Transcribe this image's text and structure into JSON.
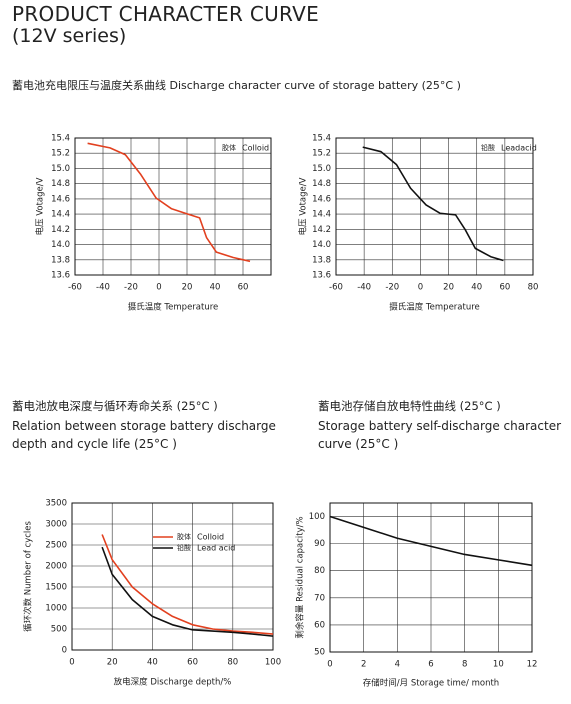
{
  "header": {
    "title": "PRODUCT CHARACTER CURVE",
    "subtitle": "(12V series)"
  },
  "sections": [
    {
      "heading": "蓄电池充电限压与温度关系曲线  Discharge character curve of storage battery (25°C )"
    },
    {
      "heading_cn": "蓄电池放电深度与循环寿命关系 (25°C )",
      "heading_en": "Relation between storage battery discharge depth and cycle life (25°C )"
    },
    {
      "heading_cn": "蓄电池存储自放电特性曲线 (25°C )",
      "heading_en": "Storage battery self-discharge character curve (25°C )"
    }
  ],
  "chart_data": [
    {
      "type": "line",
      "x_label": "摄氏温度 Temperature",
      "y_label": "电压 Votage/V",
      "x": [
        -51,
        -35,
        -24,
        -13,
        -2,
        9,
        19,
        29,
        34,
        41,
        53,
        65
      ],
      "series": [
        {
          "name": "Colloid",
          "name_cn": "胶体",
          "color": "#e2401f",
          "values": [
            15.33,
            15.27,
            15.18,
            14.92,
            14.61,
            14.47,
            14.41,
            14.35,
            14.09,
            13.9,
            13.83,
            13.78
          ]
        }
      ],
      "xlim": [
        -60,
        80
      ],
      "xticks": [
        -60,
        -40,
        -20,
        0,
        20,
        40,
        60
      ],
      "ylim": [
        13.6,
        15.4
      ],
      "yticks": [
        13.6,
        13.8,
        {
          "value": 14,
          "label": "14.0"
        },
        14.2,
        14.4,
        14.6,
        14.8,
        {
          "value": 15,
          "label": "15.0"
        },
        15.2,
        15.4
      ],
      "grid": true,
      "legend": "top-right"
    },
    {
      "type": "line",
      "x_label": "摄氏温度 Temperature",
      "y_label": "电压 Votage/V",
      "x": [
        -41,
        -28,
        -17,
        -7,
        4,
        14,
        25,
        32,
        39,
        50,
        59
      ],
      "series": [
        {
          "name": "Leadacid",
          "name_cn": "铅酸",
          "color": "#111111",
          "values": [
            15.28,
            15.22,
            15.05,
            14.74,
            14.52,
            14.41,
            14.39,
            14.19,
            13.95,
            13.84,
            13.79
          ]
        }
      ],
      "xlim": [
        -60,
        80
      ],
      "xticks": [
        -60,
        -40,
        -20,
        0,
        20,
        40,
        60,
        80
      ],
      "ylim": [
        13.6,
        15.4
      ],
      "yticks": [
        13.6,
        13.8,
        {
          "value": 14,
          "label": "14.0"
        },
        14.2,
        14.4,
        14.6,
        14.8,
        {
          "value": 15,
          "label": "15.0"
        },
        15.2,
        15.4
      ],
      "grid": true,
      "legend": "top-right"
    },
    {
      "type": "line",
      "x_label": "放电深度 Discharge depth/%",
      "y_label": "循环次数 Number of cycles",
      "x": [
        15,
        20,
        30,
        40,
        50,
        60,
        70,
        80,
        90,
        100
      ],
      "series": [
        {
          "name": "Colloid",
          "name_cn": "胶体",
          "color": "#e2401f",
          "values": [
            2750,
            2150,
            1500,
            1100,
            800,
            600,
            500,
            450,
            420,
            380
          ]
        },
        {
          "name": "Lead acid",
          "name_cn": "铅酸",
          "color": "#111111",
          "values": [
            2450,
            1800,
            1200,
            800,
            600,
            480,
            450,
            420,
            380,
            330
          ]
        }
      ],
      "xlim": [
        0,
        100
      ],
      "xticks": [
        0,
        20,
        40,
        60,
        80,
        100
      ],
      "ylim": [
        0,
        3500
      ],
      "yticks": [
        0,
        500,
        1000,
        1500,
        2000,
        2500,
        3000,
        3500
      ],
      "grid": true,
      "legend": "upper-middle"
    },
    {
      "type": "line",
      "x_label": "存储时间/月 Storage time/ month",
      "y_label": "剩余容量 Residual capacity/%",
      "x": [
        0,
        2,
        4,
        6,
        8,
        10,
        12
      ],
      "values": [
        100,
        96,
        92,
        89,
        86,
        84,
        82
      ],
      "color": "#111111",
      "xlim": [
        0,
        12
      ],
      "xticks": [
        0,
        2,
        4,
        6,
        8,
        10,
        12
      ],
      "ylim": [
        50,
        105
      ],
      "yticks": [
        50,
        60,
        70,
        80,
        90,
        100
      ],
      "grid": true
    }
  ]
}
